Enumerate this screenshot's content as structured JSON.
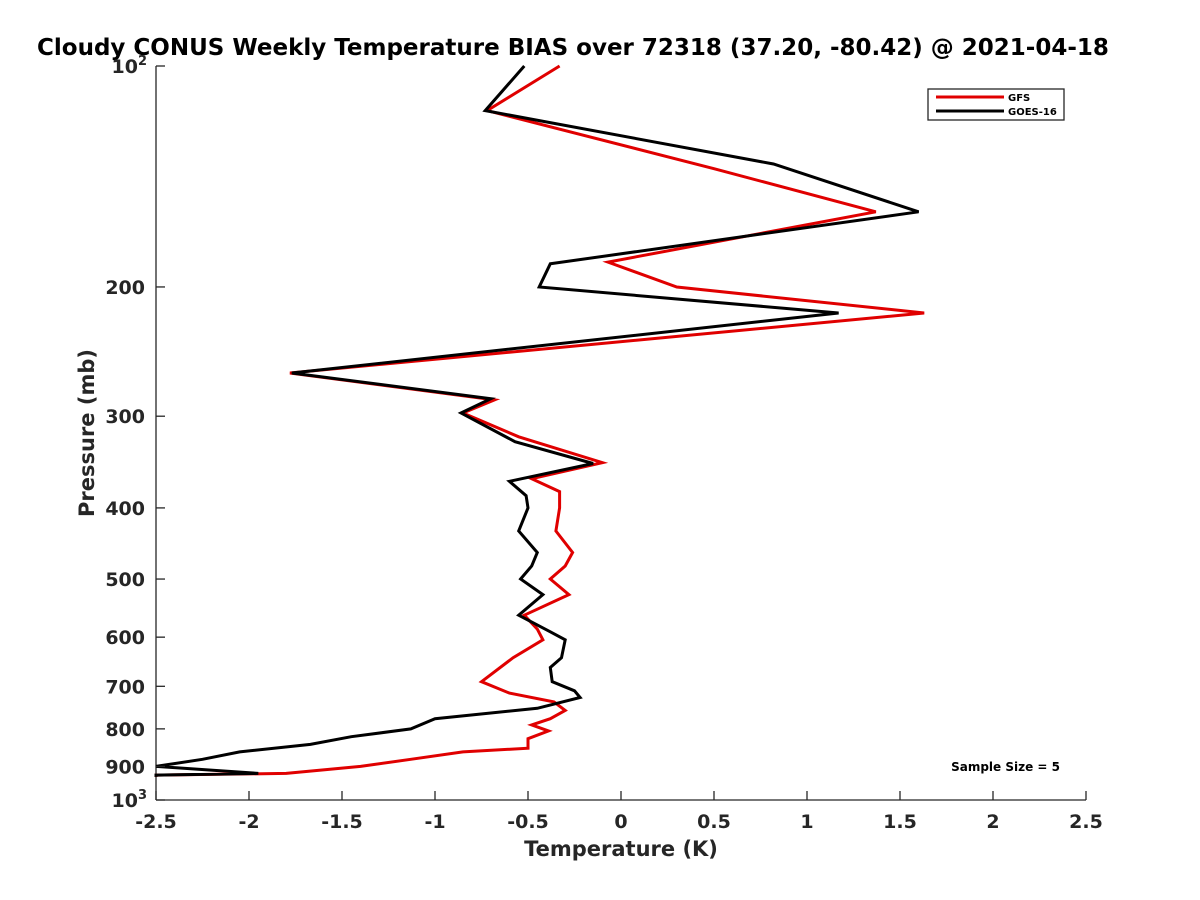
{
  "chart_data": {
    "type": "line",
    "title": "Cloudy CONUS Weekly Temperature BIAS over 72318 (37.20, -80.42) @ 2021-04-18",
    "xlabel": "Temperature (K)",
    "ylabel": "Pressure (mb)",
    "xlim": [
      -2.5,
      2.5
    ],
    "ylim": [
      100,
      1000
    ],
    "y_scale": "log",
    "y_reversed": true,
    "grid": false,
    "legend_placement": "top-right",
    "x_ticks": [
      {
        "value": -2.5,
        "label": "-2.5"
      },
      {
        "value": -2,
        "label": "-2"
      },
      {
        "value": -1.5,
        "label": "-1.5"
      },
      {
        "value": -1,
        "label": "-1"
      },
      {
        "value": -0.5,
        "label": "-0.5"
      },
      {
        "value": 0,
        "label": "0"
      },
      {
        "value": 0.5,
        "label": "0.5"
      },
      {
        "value": 1,
        "label": "1"
      },
      {
        "value": 1.5,
        "label": "1.5"
      },
      {
        "value": 2,
        "label": "2"
      },
      {
        "value": 2.5,
        "label": "2.5"
      }
    ],
    "y_ticks": [
      {
        "value": 100,
        "base": "10",
        "exp": "2"
      },
      {
        "value": 200,
        "base": "200",
        "exp": ""
      },
      {
        "value": 300,
        "base": "300",
        "exp": ""
      },
      {
        "value": 400,
        "base": "400",
        "exp": ""
      },
      {
        "value": 500,
        "base": "500",
        "exp": ""
      },
      {
        "value": 600,
        "base": "600",
        "exp": ""
      },
      {
        "value": 700,
        "base": "700",
        "exp": ""
      },
      {
        "value": 800,
        "base": "800",
        "exp": ""
      },
      {
        "value": 900,
        "base": "900",
        "exp": ""
      },
      {
        "value": 1000,
        "base": "10",
        "exp": "3"
      }
    ],
    "annotation": "Sample Size = 5",
    "series": [
      {
        "name": "GFS",
        "color": "#e00000",
        "points": [
          [
            -0.33,
            100
          ],
          [
            -0.72,
            115
          ],
          [
            0.5,
            138
          ],
          [
            1.37,
            158
          ],
          [
            -0.07,
            185
          ],
          [
            0.3,
            200
          ],
          [
            1.63,
            217
          ],
          [
            -1.78,
            262
          ],
          [
            -0.68,
            285
          ],
          [
            -0.85,
            297
          ],
          [
            -0.55,
            320
          ],
          [
            -0.1,
            347
          ],
          [
            -0.48,
            365
          ],
          [
            -0.33,
            380
          ],
          [
            -0.33,
            400
          ],
          [
            -0.35,
            430
          ],
          [
            -0.26,
            460
          ],
          [
            -0.3,
            480
          ],
          [
            -0.38,
            500
          ],
          [
            -0.28,
            525
          ],
          [
            -0.52,
            560
          ],
          [
            -0.45,
            585
          ],
          [
            -0.42,
            605
          ],
          [
            -0.58,
            640
          ],
          [
            -0.75,
            690
          ],
          [
            -0.6,
            715
          ],
          [
            -0.36,
            735
          ],
          [
            -0.3,
            755
          ],
          [
            -0.38,
            775
          ],
          [
            -0.48,
            790
          ],
          [
            -0.39,
            805
          ],
          [
            -0.5,
            825
          ],
          [
            -0.5,
            850
          ],
          [
            -0.85,
            860
          ],
          [
            -1.13,
            880
          ],
          [
            -1.4,
            900
          ],
          [
            -1.8,
            920
          ],
          [
            -2.5,
            925
          ],
          [
            -2.5,
            930
          ]
        ]
      },
      {
        "name": "GOES-16",
        "color": "#000000",
        "points": [
          [
            -0.52,
            100
          ],
          [
            -0.73,
            115
          ],
          [
            0.82,
            136
          ],
          [
            1.6,
            158
          ],
          [
            -0.38,
            186
          ],
          [
            -0.44,
            200
          ],
          [
            1.17,
            217
          ],
          [
            -1.77,
            262
          ],
          [
            -0.7,
            284
          ],
          [
            -0.86,
            297
          ],
          [
            -0.57,
            325
          ],
          [
            -0.15,
            348
          ],
          [
            -0.6,
            368
          ],
          [
            -0.51,
            385
          ],
          [
            -0.5,
            400
          ],
          [
            -0.55,
            430
          ],
          [
            -0.45,
            460
          ],
          [
            -0.48,
            480
          ],
          [
            -0.54,
            500
          ],
          [
            -0.42,
            525
          ],
          [
            -0.55,
            560
          ],
          [
            -0.38,
            590
          ],
          [
            -0.3,
            605
          ],
          [
            -0.32,
            640
          ],
          [
            -0.38,
            660
          ],
          [
            -0.37,
            690
          ],
          [
            -0.25,
            710
          ],
          [
            -0.22,
            725
          ],
          [
            -0.45,
            750
          ],
          [
            -1.0,
            775
          ],
          [
            -1.13,
            800
          ],
          [
            -1.45,
            820
          ],
          [
            -1.67,
            840
          ],
          [
            -2.05,
            860
          ],
          [
            -2.25,
            880
          ],
          [
            -2.5,
            900
          ],
          [
            -1.95,
            920
          ],
          [
            -2.5,
            925
          ],
          [
            -2.5,
            930
          ]
        ]
      }
    ]
  }
}
